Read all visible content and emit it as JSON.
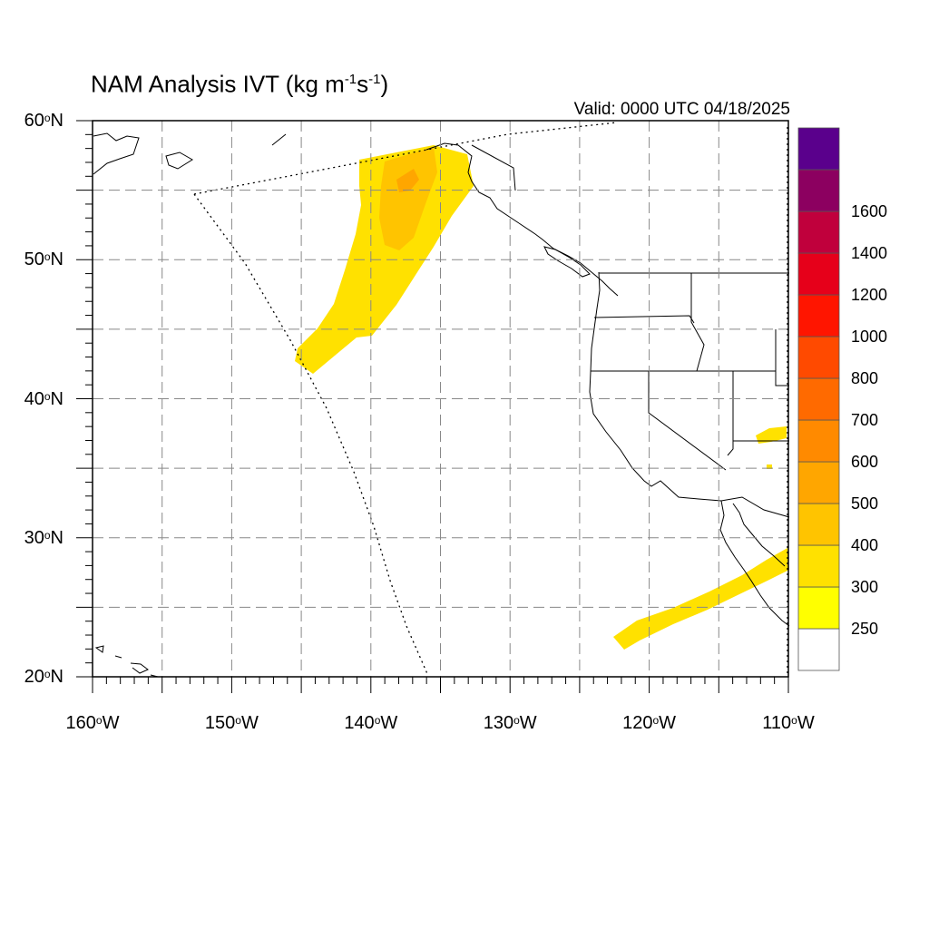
{
  "title": {
    "main": "NAM Analysis IVT (kg m",
    "exp1": "-1",
    "mid": "s",
    "exp2": "-1",
    "close": ")"
  },
  "valid_text": "Valid: 0000 UTC 04/18/2025",
  "map": {
    "projection": "cylindrical equidistant",
    "lon_range": [
      -160,
      -110
    ],
    "lat_range": [
      20,
      60
    ],
    "grid": "dashed, every 5 degrees",
    "lat_labels": [
      {
        "value": 60,
        "num": "60",
        "hem": "N"
      },
      {
        "value": 50,
        "num": "50",
        "hem": "N"
      },
      {
        "value": 40,
        "num": "40",
        "hem": "N"
      },
      {
        "value": 30,
        "num": "30",
        "hem": "N"
      },
      {
        "value": 20,
        "num": "20",
        "hem": "N"
      }
    ],
    "lon_labels": [
      {
        "value": -160,
        "num": "160",
        "hem": "W"
      },
      {
        "value": -150,
        "num": "150",
        "hem": "W"
      },
      {
        "value": -140,
        "num": "140",
        "hem": "W"
      },
      {
        "value": -130,
        "num": "130",
        "hem": "W"
      },
      {
        "value": -120,
        "num": "120",
        "hem": "W"
      },
      {
        "value": -110,
        "num": "110",
        "hem": "W"
      }
    ],
    "features": [
      "North America west coast coastline",
      "US state borders",
      "Mexico border",
      "NAM domain boundary (dotted)"
    ],
    "ivt_regions": [
      {
        "name": "Gulf of Alaska atmospheric river",
        "max_class": "400-500"
      },
      {
        "name": "Baja California / Mexico plume",
        "max_class": "250-300"
      },
      {
        "name": "Arizona patch",
        "max_class": "250-300"
      }
    ]
  },
  "colorbar": {
    "levels": [
      "250",
      "300",
      "400",
      "500",
      "600",
      "700",
      "800",
      "1000",
      "1200",
      "1400",
      "1600"
    ],
    "colors": [
      "#ffffff",
      "#ffff00",
      "#ffe100",
      "#ffc400",
      "#ffa600",
      "#ff8a00",
      "#ff6a00",
      "#ff4a00",
      "#ff1500",
      "#e6001a",
      "#c0003c",
      "#8c0060",
      "#5a008c"
    ]
  }
}
